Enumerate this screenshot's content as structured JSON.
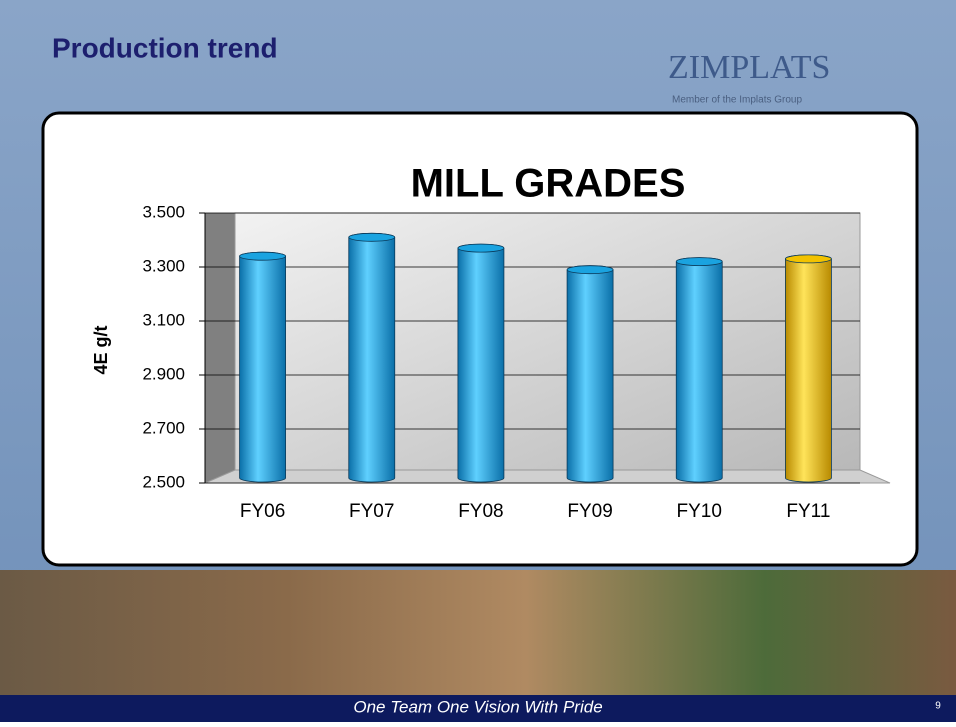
{
  "slide": {
    "title": "Production trend",
    "logo": "ZIMPLATS",
    "logo_tagline": "Member of the Implats Group",
    "footer": "One Team One Vision With Pride",
    "page_number": "9"
  },
  "chart_data": {
    "type": "bar",
    "title": "MILL GRADES",
    "y_label": "4E g/t",
    "categories": [
      "FY06",
      "FY07",
      "FY08",
      "FY09",
      "FY10",
      "FY11"
    ],
    "values": [
      3.34,
      3.41,
      3.37,
      3.29,
      3.32,
      3.33
    ],
    "colors": [
      "#1aa3e0",
      "#1aa3e0",
      "#1aa3e0",
      "#1aa3e0",
      "#1aa3e0",
      "#f2c200"
    ],
    "ylim": [
      2.5,
      3.5
    ],
    "yticks": [
      {
        "value": 2.5,
        "label": "2.500"
      },
      {
        "value": 2.7,
        "label": "2.700"
      },
      {
        "value": 2.9,
        "label": "2.900"
      },
      {
        "value": 3.1,
        "label": "3.100"
      },
      {
        "value": 3.3,
        "label": "3.300"
      },
      {
        "value": 3.5,
        "label": "3.500"
      }
    ],
    "grid": true
  }
}
